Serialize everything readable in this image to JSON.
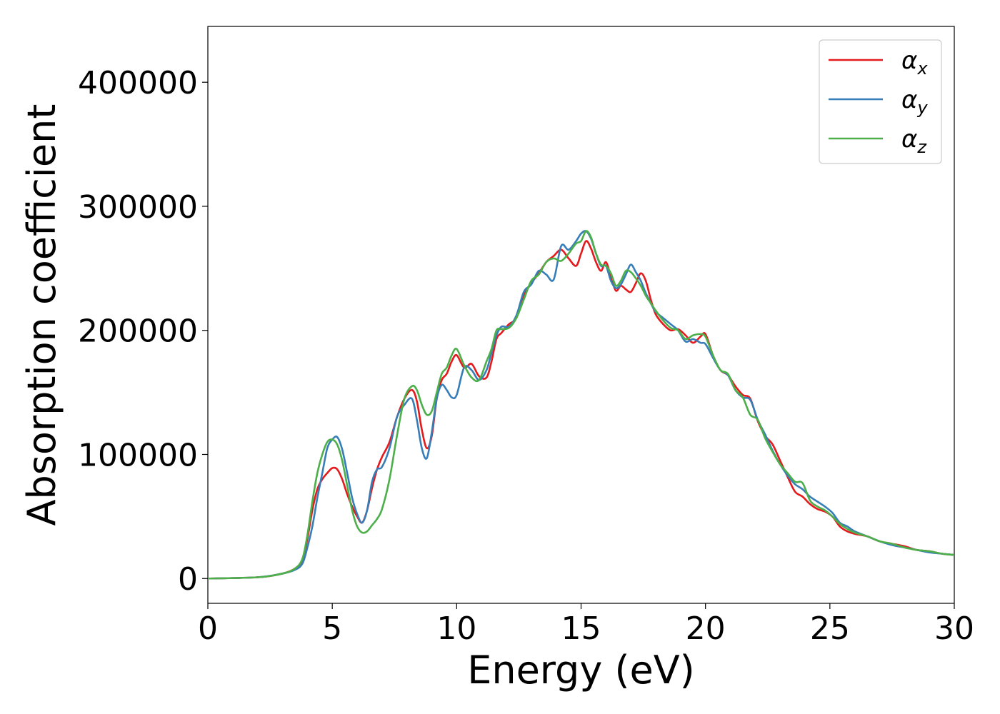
{
  "chart_data": {
    "type": "line",
    "title": "",
    "xlabel": "Energy (eV)",
    "ylabel": "Absorption coefficient",
    "xlim": [
      0,
      30
    ],
    "ylim": [
      -20000,
      445000
    ],
    "xticks": [
      0,
      5,
      10,
      15,
      20,
      25,
      30
    ],
    "xtick_labels": [
      "0",
      "5",
      "10",
      "15",
      "20",
      "25",
      "30"
    ],
    "yticks": [
      0,
      100000,
      200000,
      300000,
      400000
    ],
    "ytick_labels": [
      "0",
      "100000",
      "200000",
      "300000",
      "400000"
    ],
    "grid": false,
    "legend": "top-right",
    "series": [
      {
        "name": "α",
        "subscript": "x",
        "color": "#e41a1c",
        "x": [
          0,
          2,
          3,
          3.5,
          3.8,
          4.0,
          4.2,
          4.4,
          4.6,
          4.8,
          5.0,
          5.2,
          5.4,
          5.6,
          5.8,
          6.0,
          6.2,
          6.4,
          6.6,
          6.8,
          7.0,
          7.3,
          7.6,
          7.9,
          8.2,
          8.4,
          8.6,
          8.8,
          9.0,
          9.2,
          9.4,
          9.6,
          9.8,
          10.0,
          10.3,
          10.6,
          10.9,
          11.2,
          11.4,
          11.6,
          11.8,
          12.1,
          12.4,
          12.7,
          13.0,
          13.3,
          13.6,
          13.9,
          14.2,
          14.5,
          14.8,
          15.0,
          15.2,
          15.4,
          15.6,
          15.8,
          16.0,
          16.2,
          16.4,
          16.6,
          16.8,
          17.0,
          17.2,
          17.4,
          17.6,
          17.8,
          18.0,
          18.3,
          18.6,
          18.9,
          19.2,
          19.5,
          19.8,
          20.0,
          20.3,
          20.6,
          20.9,
          21.2,
          21.5,
          21.8,
          22.1,
          22.4,
          22.7,
          23.0,
          23.3,
          23.6,
          23.9,
          24.2,
          24.5,
          24.8,
          25.1,
          25.4,
          25.7,
          26.0,
          26.5,
          27.0,
          27.5,
          28.0,
          28.5,
          29.0,
          29.5,
          30.0
        ],
        "y": [
          0,
          1000,
          4000,
          8000,
          15000,
          32000,
          55000,
          72000,
          80000,
          85000,
          89000,
          88000,
          80000,
          68000,
          58000,
          50000,
          45000,
          55000,
          73000,
          88000,
          98000,
          110000,
          130000,
          145000,
          152000,
          143000,
          120000,
          105000,
          115000,
          145000,
          160000,
          165000,
          175000,
          180000,
          170000,
          173000,
          163000,
          162000,
          175000,
          193000,
          198000,
          205000,
          210000,
          228000,
          238000,
          246000,
          255000,
          260000,
          265000,
          258000,
          252000,
          262000,
          272000,
          266000,
          255000,
          248000,
          255000,
          243000,
          232000,
          236000,
          233000,
          231000,
          238000,
          246000,
          240000,
          225000,
          213000,
          205000,
          200000,
          201000,
          196000,
          190000,
          195000,
          197000,
          180000,
          168000,
          164000,
          155000,
          148000,
          145000,
          127000,
          115000,
          108000,
          95000,
          82000,
          70000,
          66000,
          60000,
          56000,
          54000,
          50000,
          42000,
          38000,
          36000,
          34000,
          30000,
          28000,
          26000,
          23000,
          22000,
          20000,
          19000
        ]
      },
      {
        "name": "α",
        "subscript": "y",
        "color": "#377eb8",
        "x": [
          0,
          2,
          3,
          3.5,
          3.8,
          4.0,
          4.2,
          4.4,
          4.6,
          4.8,
          5.0,
          5.2,
          5.4,
          5.6,
          5.8,
          6.0,
          6.2,
          6.4,
          6.6,
          6.8,
          7.0,
          7.3,
          7.6,
          7.9,
          8.2,
          8.4,
          8.6,
          8.8,
          9.0,
          9.2,
          9.4,
          9.6,
          9.8,
          10.0,
          10.3,
          10.6,
          10.9,
          11.2,
          11.4,
          11.6,
          11.8,
          12.1,
          12.4,
          12.7,
          13.0,
          13.3,
          13.6,
          13.9,
          14.2,
          14.5,
          14.8,
          15.0,
          15.2,
          15.4,
          15.6,
          15.8,
          16.0,
          16.2,
          16.4,
          16.6,
          16.8,
          17.0,
          17.2,
          17.4,
          17.6,
          17.8,
          18.0,
          18.3,
          18.6,
          18.9,
          19.2,
          19.5,
          19.8,
          20.0,
          20.3,
          20.6,
          20.9,
          21.2,
          21.5,
          21.8,
          22.1,
          22.4,
          22.7,
          23.0,
          23.3,
          23.6,
          23.9,
          24.2,
          24.5,
          24.8,
          25.1,
          25.4,
          25.7,
          26.0,
          26.5,
          27.0,
          27.5,
          28.0,
          28.5,
          29.0,
          29.5,
          30.0
        ],
        "y": [
          0,
          1000,
          4000,
          7000,
          12000,
          25000,
          42000,
          65000,
          85000,
          105000,
          112000,
          114000,
          104000,
          85000,
          65000,
          52000,
          45000,
          55000,
          78000,
          88000,
          90000,
          105000,
          130000,
          140000,
          145000,
          128000,
          105000,
          97000,
          118000,
          145000,
          156000,
          152000,
          146000,
          148000,
          170000,
          168000,
          160000,
          168000,
          182000,
          196000,
          203000,
          203000,
          212000,
          231000,
          237000,
          248000,
          245000,
          241000,
          268000,
          265000,
          272000,
          278000,
          280000,
          274000,
          262000,
          252000,
          252000,
          240000,
          234000,
          237000,
          245000,
          253000,
          247000,
          240000,
          230000,
          222000,
          215000,
          210000,
          205000,
          200000,
          191000,
          193000,
          190000,
          189000,
          178000,
          168000,
          164000,
          152000,
          146000,
          144000,
          128000,
          116000,
          103000,
          92000,
          83000,
          76000,
          72000,
          66000,
          62000,
          58000,
          53000,
          45000,
          42000,
          38000,
          34000,
          30000,
          27000,
          25000,
          23000,
          21000,
          20000,
          19000
        ]
      },
      {
        "name": "α",
        "subscript": "z",
        "color": "#4daf4a",
        "x": [
          0,
          2,
          3,
          3.5,
          3.8,
          4.0,
          4.2,
          4.4,
          4.6,
          4.8,
          5.0,
          5.2,
          5.4,
          5.6,
          5.8,
          6.0,
          6.2,
          6.4,
          6.6,
          6.8,
          7.0,
          7.3,
          7.6,
          7.9,
          8.2,
          8.4,
          8.6,
          8.8,
          9.0,
          9.2,
          9.4,
          9.6,
          9.8,
          10.0,
          10.3,
          10.6,
          10.9,
          11.2,
          11.4,
          11.6,
          11.8,
          12.1,
          12.4,
          12.7,
          13.0,
          13.3,
          13.6,
          13.9,
          14.2,
          14.5,
          14.8,
          15.0,
          15.2,
          15.4,
          15.6,
          15.8,
          16.0,
          16.2,
          16.4,
          16.6,
          16.8,
          17.0,
          17.2,
          17.4,
          17.6,
          17.8,
          18.0,
          18.3,
          18.6,
          18.9,
          19.2,
          19.5,
          19.8,
          20.0,
          20.3,
          20.6,
          20.9,
          21.2,
          21.5,
          21.8,
          22.1,
          22.4,
          22.7,
          23.0,
          23.3,
          23.6,
          23.9,
          24.2,
          24.5,
          24.8,
          25.1,
          25.4,
          25.7,
          26.0,
          26.5,
          27.0,
          27.5,
          28.0,
          28.5,
          29.0,
          29.5,
          30.0
        ],
        "y": [
          0,
          1000,
          4000,
          8000,
          16000,
          35000,
          62000,
          85000,
          100000,
          110000,
          112000,
          108000,
          95000,
          75000,
          55000,
          42000,
          37000,
          38000,
          43000,
          48000,
          56000,
          80000,
          115000,
          145000,
          155000,
          152000,
          140000,
          132000,
          135000,
          150000,
          165000,
          170000,
          180000,
          185000,
          172000,
          162000,
          160000,
          175000,
          185000,
          200000,
          201000,
          202000,
          210000,
          225000,
          240000,
          245000,
          255000,
          258000,
          256000,
          262000,
          270000,
          272000,
          280000,
          275000,
          262000,
          253000,
          252000,
          246000,
          236000,
          240000,
          248000,
          247000,
          242000,
          236000,
          228000,
          222000,
          216000,
          208000,
          202000,
          200000,
          193000,
          196000,
          197000,
          195000,
          180000,
          168000,
          165000,
          152000,
          146000,
          132000,
          128000,
          113000,
          102000,
          92000,
          85000,
          78000,
          77000,
          63000,
          58000,
          55000,
          50000,
          44000,
          40000,
          37000,
          34000,
          30000,
          28000,
          25000,
          23000,
          22000,
          20000,
          19000
        ]
      }
    ]
  }
}
